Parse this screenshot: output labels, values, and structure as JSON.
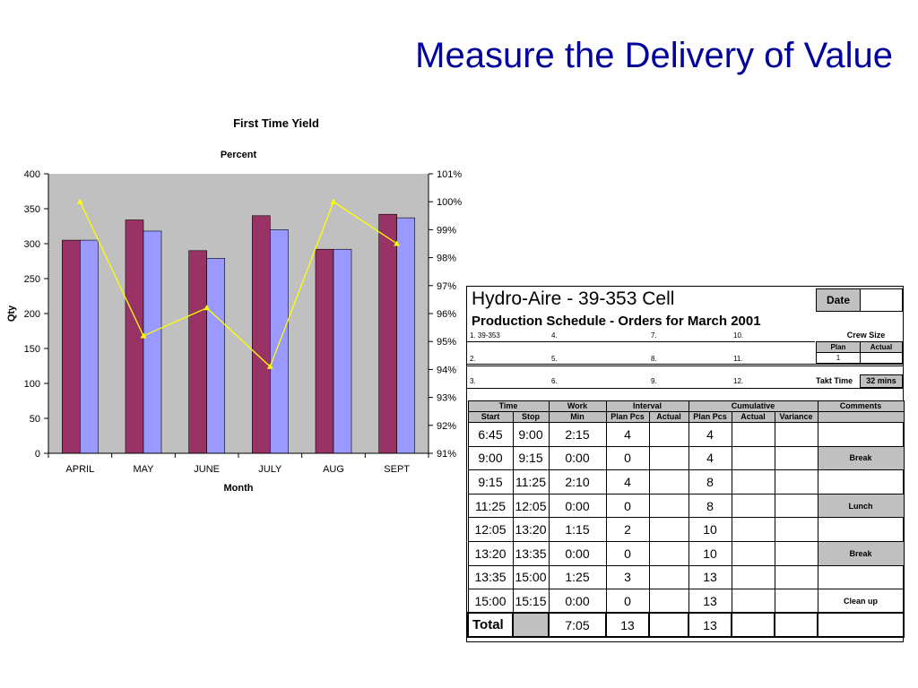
{
  "slide": {
    "title": "Measure the Delivery of Value"
  },
  "chart_data": {
    "type": "bar",
    "title": "First Time Yield",
    "subtitle": "Percent",
    "xlabel": "Month",
    "ylabel": "Qty",
    "categories": [
      "APRIL",
      "MAY",
      "JUNE",
      "JULY",
      "AUG",
      "SEPT"
    ],
    "ylim": [
      0,
      400
    ],
    "yticks": [
      "0",
      "50",
      "100",
      "150",
      "200",
      "250",
      "300",
      "350",
      "400"
    ],
    "y2lim": [
      91,
      101
    ],
    "y2ticks": [
      "91%",
      "92%",
      "93%",
      "94%",
      "95%",
      "96%",
      "97%",
      "98%",
      "99%",
      "100%",
      "101%"
    ],
    "grid": false,
    "series": [
      {
        "values": [
          305,
          334,
          290,
          340,
          292,
          342
        ],
        "color": "#993366",
        "axis": "left",
        "kind": "bar"
      },
      {
        "values": [
          305,
          318,
          279,
          320,
          292,
          337
        ],
        "color": "#9999ff",
        "axis": "left",
        "kind": "bar"
      },
      {
        "values": [
          100,
          95.2,
          96.2,
          94.1,
          100,
          98.5
        ],
        "color": "#ffff00",
        "axis": "right",
        "kind": "line"
      }
    ],
    "plot_background": "#c0c0c0"
  },
  "schedule": {
    "title": "Hydro-Aire - 39-353 Cell",
    "subtitle": "Production Schedule - Orders for March 2001",
    "date_label": "Date",
    "date_value": "",
    "orders": [
      "1. 39-353",
      "2.",
      "3.",
      "4.",
      "5.",
      "6.",
      "7.",
      "8.",
      "9.",
      "10.",
      "11.",
      "12."
    ],
    "crew_size_label": "Crew Size",
    "crew_plan_label": "Plan",
    "crew_actual_label": "Actual",
    "crew_plan_value": "1",
    "crew_actual_value": "",
    "takt_label": "Takt Time",
    "takt_value": "32 mins",
    "headers": {
      "time": "Time",
      "work": "Work",
      "interval": "Interval",
      "cumulative": "Cumulative",
      "comments": "Comments",
      "start": "Start",
      "stop": "Stop",
      "min": "Min",
      "plan_pcs": "Plan Pcs",
      "actual": "Actual",
      "cum_plan_pcs": "Plan Pcs",
      "cum_actual": "Actual",
      "variance": "Variance"
    },
    "rows": [
      {
        "start": "6:45",
        "stop": "9:00",
        "min": "2:15",
        "plan": "4",
        "actual": "",
        "cum_plan": "4",
        "cum_actual": "",
        "variance": "",
        "comment": ""
      },
      {
        "start": "9:00",
        "stop": "9:15",
        "min": "0:00",
        "plan": "0",
        "actual": "",
        "cum_plan": "4",
        "cum_actual": "",
        "variance": "",
        "comment": "Break"
      },
      {
        "start": "9:15",
        "stop": "11:25",
        "min": "2:10",
        "plan": "4",
        "actual": "",
        "cum_plan": "8",
        "cum_actual": "",
        "variance": "",
        "comment": ""
      },
      {
        "start": "11:25",
        "stop": "12:05",
        "min": "0:00",
        "plan": "0",
        "actual": "",
        "cum_plan": "8",
        "cum_actual": "",
        "variance": "",
        "comment": "Lunch"
      },
      {
        "start": "12:05",
        "stop": "13:20",
        "min": "1:15",
        "plan": "2",
        "actual": "",
        "cum_plan": "10",
        "cum_actual": "",
        "variance": "",
        "comment": ""
      },
      {
        "start": "13:20",
        "stop": "13:35",
        "min": "0:00",
        "plan": "0",
        "actual": "",
        "cum_plan": "10",
        "cum_actual": "",
        "variance": "",
        "comment": "Break"
      },
      {
        "start": "13:35",
        "stop": "15:00",
        "min": "1:25",
        "plan": "3",
        "actual": "",
        "cum_plan": "13",
        "cum_actual": "",
        "variance": "",
        "comment": ""
      },
      {
        "start": "15:00",
        "stop": "15:15",
        "min": "0:00",
        "plan": "0",
        "actual": "",
        "cum_plan": "13",
        "cum_actual": "",
        "variance": "",
        "comment": "Clean up"
      }
    ],
    "total": {
      "label": "Total",
      "min": "7:05",
      "plan": "13",
      "cum_plan": "13"
    }
  }
}
